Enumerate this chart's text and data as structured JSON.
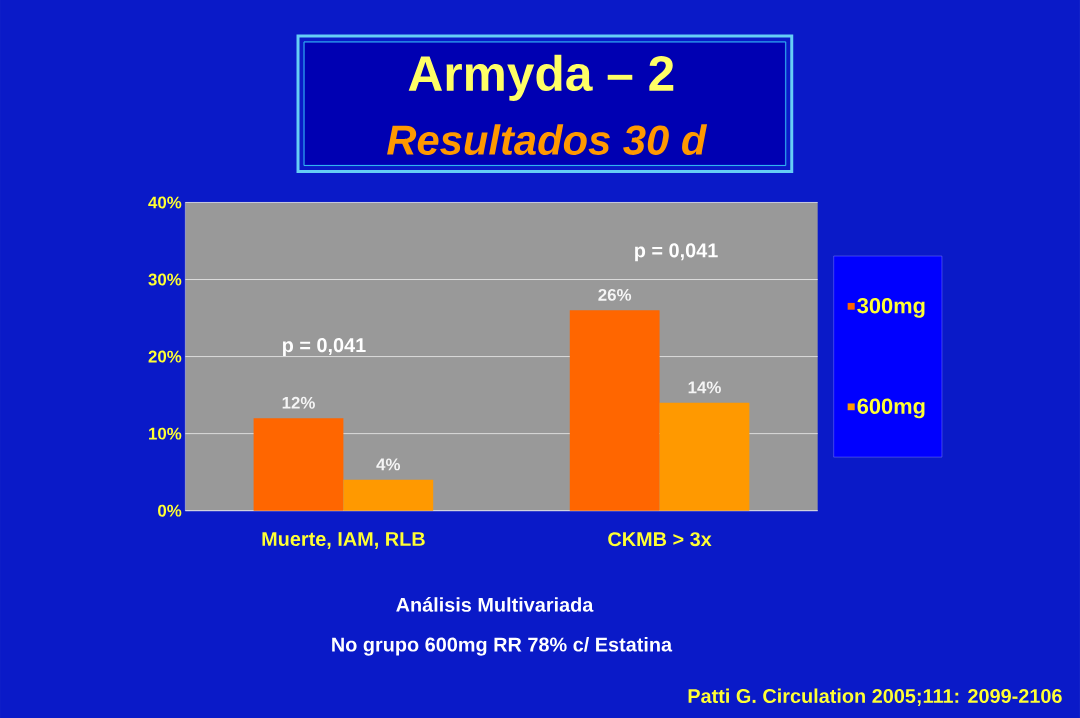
{
  "chart_data": {
    "type": "bar",
    "title": "Armyda – 2",
    "subtitle": "Resultados 30 d",
    "categories": [
      "Muerte, IAM, RLB",
      "CKMB > 3x"
    ],
    "series": [
      {
        "name": "300mg",
        "color": "#ff6600",
        "values": [
          12,
          26
        ],
        "value_labels": [
          "12%",
          "26%"
        ]
      },
      {
        "name": "600mg",
        "color": "#ff9900",
        "values": [
          4,
          14
        ],
        "value_labels": [
          "4%",
          "14%"
        ]
      }
    ],
    "ylim": [
      0,
      40
    ],
    "yticks": [
      {
        "value": 0,
        "label": "0%"
      },
      {
        "value": 10,
        "label": "10%"
      },
      {
        "value": 20,
        "label": "20%"
      },
      {
        "value": 30,
        "label": "30%"
      },
      {
        "value": 40,
        "label": "40%"
      }
    ],
    "grid": "y",
    "legend": "right",
    "annotations": [
      "p = 0,041",
      "p = 0,041",
      "Análisis Multivariada",
      "No grupo 600mg RR 78% c/ Estatina",
      "Patti G.  Circulation 2005;111: 2099-2106"
    ]
  }
}
